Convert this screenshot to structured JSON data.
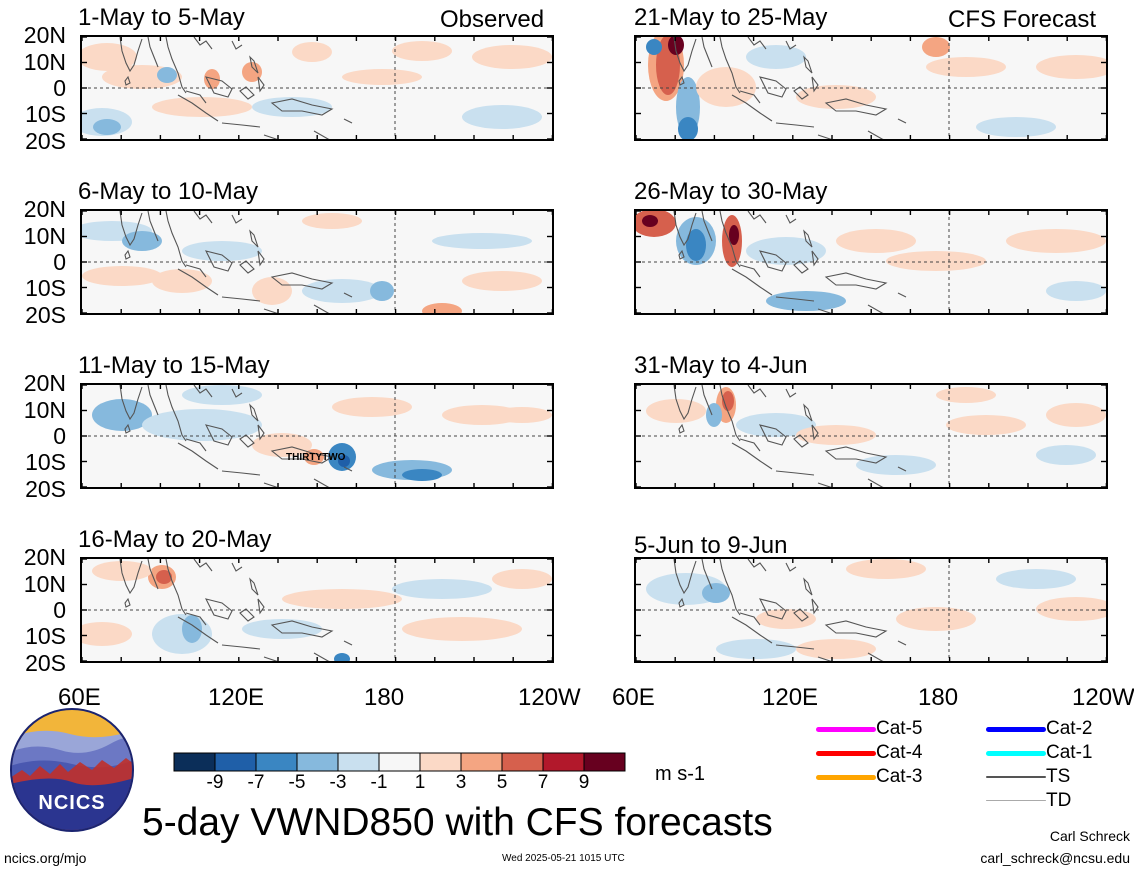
{
  "header": {
    "observed_label": "Observed",
    "forecast_label": "CFS Forecast"
  },
  "panels": [
    {
      "title": "1-May to 5-May"
    },
    {
      "title": "6-May to 10-May"
    },
    {
      "title": "11-May to 15-May",
      "storm_label": "THIRTYTWO"
    },
    {
      "title": "16-May to 20-May"
    },
    {
      "title": "21-May to 25-May"
    },
    {
      "title": "26-May to 30-May"
    },
    {
      "title": "31-May to 4-Jun"
    },
    {
      "title": "5-Jun to 9-Jun"
    }
  ],
  "axes": {
    "lat_labels": [
      "20N",
      "10N",
      "0",
      "10S",
      "20S"
    ],
    "lon_labels": [
      "60E",
      "120E",
      "180",
      "120W"
    ]
  },
  "colorbar": {
    "ticks": [
      "-9",
      "-7",
      "-5",
      "-3",
      "-1",
      "1",
      "3",
      "5",
      "7",
      "9"
    ],
    "colors": [
      "#0b2e59",
      "#1f5fa8",
      "#3a86c2",
      "#86b9dd",
      "#c9e0ef",
      "#f7f7f7",
      "#fbd9c6",
      "#f4a582",
      "#d6604d",
      "#b2182b",
      "#67001f"
    ],
    "units": "m s-1"
  },
  "legend": [
    {
      "label": "Cat-5",
      "color": "#ff00ff"
    },
    {
      "label": "Cat-4",
      "color": "#ff0000"
    },
    {
      "label": "Cat-3",
      "color": "#ffa500"
    },
    {
      "label": "Cat-2",
      "color": "#0000ff"
    },
    {
      "label": "Cat-1",
      "color": "#00ffff"
    },
    {
      "label": "TS",
      "color": "#555555"
    },
    {
      "label": "TD",
      "color": "#aaaaaa"
    }
  ],
  "footer": {
    "title": "5-day VWND850 with CFS forecasts",
    "logo_text": "NCICS",
    "website": "ncics.org/mjo",
    "timestamp": "Wed 2025-05-21 1015 UTC",
    "author": "Carl Schreck",
    "email": "carl_schreck@ncsu.edu"
  }
}
